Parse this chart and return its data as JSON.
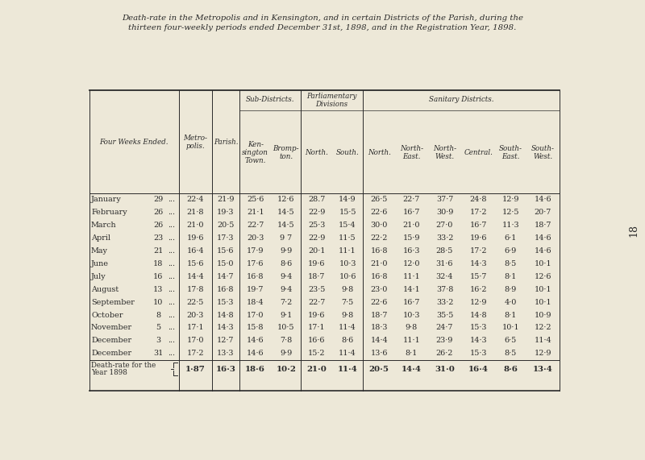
{
  "title_line1": "Death-rate in the Metropolis and in Kensington, and in certain Districts of the Parish, during the",
  "title_line2": "thirteen four-weekly periods ended December 31st, 1898, and in the Registration Year, 1898.",
  "bg_color": "#EDE8D8",
  "text_color": "#2a2a2a",
  "rows": [
    [
      "January",
      "29",
      "...",
      "22·4",
      "21·9",
      "25·6",
      "12·6",
      "28.7",
      "14·9",
      "26·5",
      "22·7",
      "37·7",
      "24·8",
      "12·9",
      "14·6"
    ],
    [
      "February",
      "26",
      "...",
      "21·8",
      "19·3",
      "21·1",
      "14·5",
      "22·9",
      "15·5",
      "22·6",
      "16·7",
      "30·9",
      "17·2",
      "12·5",
      "20·7"
    ],
    [
      "March",
      "26",
      "...",
      "21·0",
      "20·5",
      "22·7",
      "14·5",
      "25·3",
      "15·4",
      "30·0",
      "21·0",
      "27·0",
      "16·7",
      "11·3",
      "18·7"
    ],
    [
      "April",
      "23",
      "...",
      "19·6",
      "17·3",
      "20·3",
      "9 7",
      "22·9",
      "11·5",
      "22·2",
      "15·9",
      "33·2",
      "19·6",
      "6·1",
      "14·6"
    ],
    [
      "May",
      "21",
      "...",
      "16·4",
      "15·6",
      "17·9",
      "9·9",
      "20·1",
      "11·1",
      "16·8",
      "16·3",
      "28·5",
      "17·2",
      "6·9",
      "14·6"
    ],
    [
      "June",
      "18",
      "...",
      "15·6",
      "15·0",
      "17·6",
      "8·6",
      "19·6",
      "10·3",
      "21·0",
      "12·0",
      "31·6",
      "14·3",
      "8·5",
      "10·1"
    ],
    [
      "July",
      "16",
      "...",
      "14·4",
      "14·7",
      "16·8",
      "9·4",
      "18·7",
      "10·6",
      "16·8",
      "11·1",
      "32·4",
      "15·7",
      "8·1",
      "12·6"
    ],
    [
      "August",
      "13",
      "...",
      "17·8",
      "16·8",
      "19·7",
      "9·4",
      "23·5",
      "9·8",
      "23·0",
      "14·1",
      "37·8",
      "16·2",
      "8·9",
      "10·1"
    ],
    [
      "September",
      "10",
      "...",
      "22·5",
      "15·3",
      "18·4",
      "7·2",
      "22·7",
      "7·5",
      "22·6",
      "16·7",
      "33·2",
      "12·9",
      "4·0",
      "10·1"
    ],
    [
      "October",
      "8",
      "...",
      "20·3",
      "14·8",
      "17·0",
      "9·1",
      "19·6",
      "9·8",
      "18·7",
      "10·3",
      "35·5",
      "14·8",
      "8·1",
      "10·9"
    ],
    [
      "November",
      "5",
      "...",
      "17·1",
      "14·3",
      "15·8",
      "10·5",
      "17·1",
      "11·4",
      "18·3",
      "9·8",
      "24·7",
      "15·3",
      "10·1",
      "12·2"
    ],
    [
      "December",
      "3",
      "...",
      "17·0",
      "12·7",
      "14·6",
      "7·8",
      "16·6",
      "8·6",
      "14·4",
      "11·1",
      "23·9",
      "14·3",
      "6·5",
      "11·4"
    ],
    [
      "December",
      "31",
      "...",
      "17·2",
      "13·3",
      "14·6",
      "9·9",
      "15·2",
      "11·4",
      "13·6",
      "8·1",
      "26·2",
      "15·3",
      "8·5",
      "12·9"
    ]
  ],
  "footer_row": [
    "Death-rate for the\nYear 1898",
    "1·87",
    "16·3",
    "18·6",
    "10·2",
    "21·0",
    "11·4",
    "20·5",
    "14·4",
    "31·0",
    "16·4",
    "8·6",
    "13·4"
  ],
  "page_number": "18"
}
